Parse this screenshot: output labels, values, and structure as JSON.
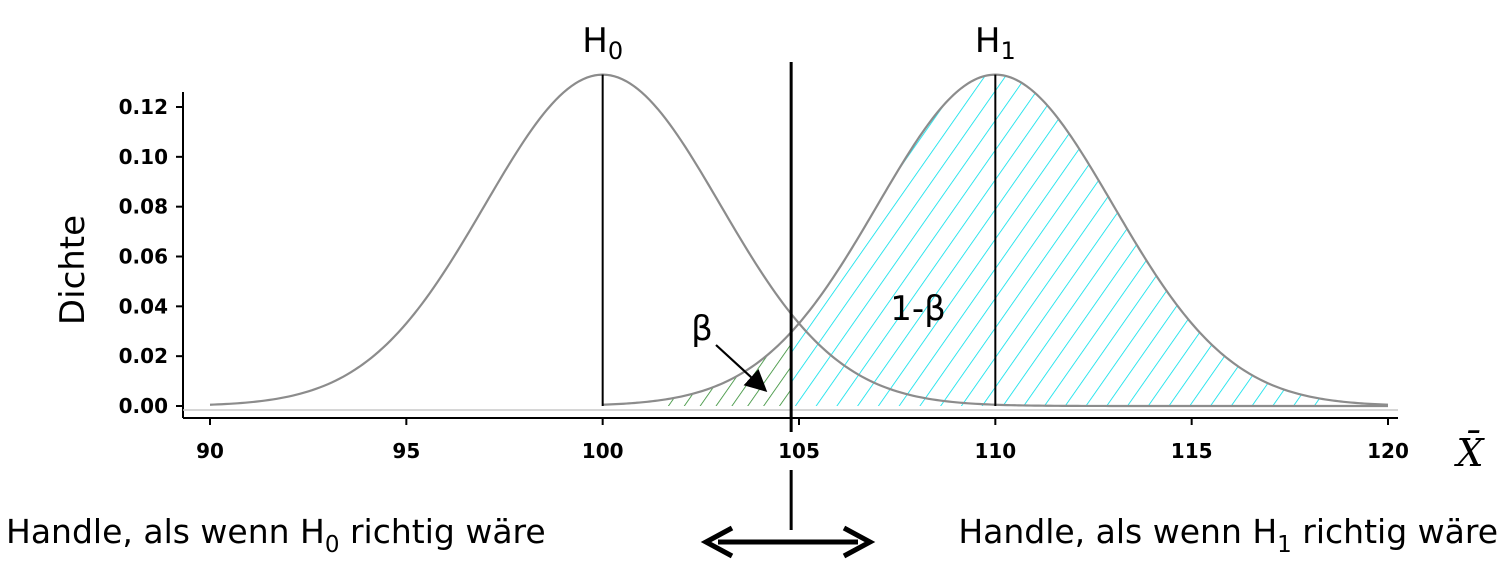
{
  "chart_data": {
    "type": "line",
    "ylabel": "Dichte",
    "xlabel": "X̄",
    "xlim": [
      90,
      120
    ],
    "ylim": [
      0,
      0.12
    ],
    "x_ticks": [
      90,
      95,
      100,
      105,
      110,
      115,
      120
    ],
    "x_tick_labels": [
      "90",
      "95",
      "100",
      "105",
      "110",
      "115",
      "120"
    ],
    "y_ticks": [
      0,
      0.02,
      0.04,
      0.06,
      0.08,
      0.1,
      0.12
    ],
    "y_tick_labels": [
      "0.00",
      "0.02",
      "0.04",
      "0.06",
      "0.08",
      "0.10",
      "0.12"
    ],
    "grid": false,
    "series": [
      {
        "mean": 100,
        "sd": 3,
        "x_range": [
          90,
          120
        ],
        "peak_label": "H",
        "peak_sub": "0"
      },
      {
        "mean": 110,
        "sd": 3,
        "x_range": [
          100,
          120
        ],
        "peak_label": "H",
        "peak_sub": "1"
      }
    ],
    "critical_value": 104.8,
    "regions": {
      "beta": {
        "label": "β",
        "x_from": 101.5,
        "x_to": 104.8,
        "color": "#2e8b2e"
      },
      "power": {
        "label": "1-β",
        "x_from": 104.8,
        "x_to": 118.3,
        "color": "#00e0ea"
      }
    },
    "curve_color": "#8c8c8c"
  },
  "annotations": {
    "left_decision": {
      "text": "Handle, als wenn H",
      "sub": "0",
      "tail": " richtig wäre"
    },
    "right_decision": {
      "text": "Handle, als wenn H",
      "sub": "1",
      "tail": " richtig wäre"
    }
  }
}
